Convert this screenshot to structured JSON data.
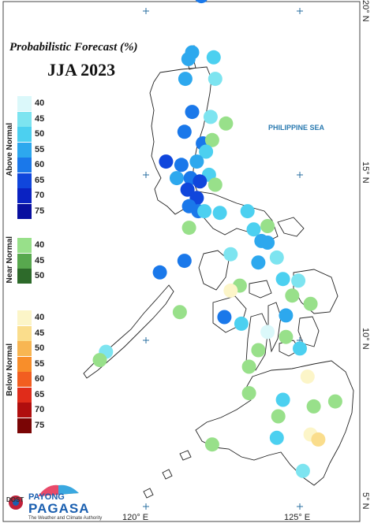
{
  "header": {
    "title": "Probabilistic Forecast (%)",
    "subtitle": "JJA 2023"
  },
  "map": {
    "sea_label": "PHILIPPINE SEA",
    "lon_labels": [
      "120° E",
      "125° E"
    ],
    "lat_labels": [
      "20° N",
      "15° N",
      "10° N",
      "5° N"
    ]
  },
  "legend": {
    "groups": [
      {
        "name": "Above Normal",
        "levels": [
          {
            "label": "40",
            "color": "#dbf8fa"
          },
          {
            "label": "45",
            "color": "#7de4f0"
          },
          {
            "label": "50",
            "color": "#4cd0f0"
          },
          {
            "label": "55",
            "color": "#2da8ee"
          },
          {
            "label": "60",
            "color": "#1a78ea"
          },
          {
            "label": "65",
            "color": "#1046dc"
          },
          {
            "label": "70",
            "color": "#0a22c2"
          },
          {
            "label": "75",
            "color": "#080fa0"
          }
        ]
      },
      {
        "name": "Near Normal",
        "levels": [
          {
            "label": "40",
            "color": "#98e08a"
          },
          {
            "label": "45",
            "color": "#58a84e"
          },
          {
            "label": "50",
            "color": "#2d6a2a"
          }
        ]
      },
      {
        "name": "Below Normal",
        "levels": [
          {
            "label": "40",
            "color": "#fcf5c8"
          },
          {
            "label": "45",
            "color": "#fadd8c"
          },
          {
            "label": "50",
            "color": "#f8b652"
          },
          {
            "label": "55",
            "color": "#f88e2a"
          },
          {
            "label": "60",
            "color": "#f25e20"
          },
          {
            "label": "65",
            "color": "#e02c1a"
          },
          {
            "label": "70",
            "color": "#b00e0e"
          },
          {
            "label": "75",
            "color": "#7a0505"
          }
        ]
      }
    ]
  },
  "stations": [
    {
      "lon": 121.8,
      "lat": 20.45,
      "cat": "AN",
      "p": 60
    },
    {
      "lon": 122.2,
      "lat": 18.6,
      "cat": "AN",
      "p": 50
    },
    {
      "lon": 121.5,
      "lat": 18.75,
      "cat": "AN",
      "p": 55
    },
    {
      "lon": 121.38,
      "lat": 18.55,
      "cat": "AN",
      "p": 55
    },
    {
      "lon": 121.28,
      "lat": 17.95,
      "cat": "AN",
      "p": 55
    },
    {
      "lon": 122.25,
      "lat": 17.95,
      "cat": "AN",
      "p": 45
    },
    {
      "lon": 121.5,
      "lat": 16.95,
      "cat": "AN",
      "p": 60
    },
    {
      "lon": 122.1,
      "lat": 16.8,
      "cat": "AN",
      "p": 45
    },
    {
      "lon": 122.6,
      "lat": 16.6,
      "cat": "NN",
      "p": 40
    },
    {
      "lon": 121.25,
      "lat": 16.35,
      "cat": "AN",
      "p": 60
    },
    {
      "lon": 121.85,
      "lat": 16.0,
      "cat": "AN",
      "p": 60
    },
    {
      "lon": 122.15,
      "lat": 16.1,
      "cat": "NN",
      "p": 40
    },
    {
      "lon": 121.95,
      "lat": 15.75,
      "cat": "AN",
      "p": 50
    },
    {
      "lon": 120.65,
      "lat": 15.45,
      "cat": "AN",
      "p": 65
    },
    {
      "lon": 121.15,
      "lat": 15.35,
      "cat": "AN",
      "p": 60
    },
    {
      "lon": 121.65,
      "lat": 15.45,
      "cat": "AN",
      "p": 55
    },
    {
      "lon": 122.05,
      "lat": 15.05,
      "cat": "AN",
      "p": 50
    },
    {
      "lon": 121.0,
      "lat": 14.95,
      "cat": "AN",
      "p": 55
    },
    {
      "lon": 121.45,
      "lat": 14.95,
      "cat": "AN",
      "p": 60
    },
    {
      "lon": 121.75,
      "lat": 14.85,
      "cat": "AN",
      "p": 65
    },
    {
      "lon": 122.25,
      "lat": 14.75,
      "cat": "NN",
      "p": 40
    },
    {
      "lon": 121.35,
      "lat": 14.6,
      "cat": "AN",
      "p": 65
    },
    {
      "lon": 121.65,
      "lat": 14.35,
      "cat": "AN",
      "p": 65
    },
    {
      "lon": 121.4,
      "lat": 14.1,
      "cat": "AN",
      "p": 60
    },
    {
      "lon": 121.7,
      "lat": 13.95,
      "cat": "AN",
      "p": 60
    },
    {
      "lon": 121.9,
      "lat": 13.95,
      "cat": "AN",
      "p": 50
    },
    {
      "lon": 122.4,
      "lat": 13.9,
      "cat": "AN",
      "p": 50
    },
    {
      "lon": 123.3,
      "lat": 13.95,
      "cat": "AN",
      "p": 50
    },
    {
      "lon": 121.4,
      "lat": 13.45,
      "cat": "NN",
      "p": 40
    },
    {
      "lon": 123.5,
      "lat": 13.4,
      "cat": "AN",
      "p": 50
    },
    {
      "lon": 123.95,
      "lat": 13.5,
      "cat": "NN",
      "p": 40
    },
    {
      "lon": 123.75,
      "lat": 13.05,
      "cat": "AN",
      "p": 55
    },
    {
      "lon": 123.95,
      "lat": 13.0,
      "cat": "AN",
      "p": 55
    },
    {
      "lon": 122.75,
      "lat": 12.65,
      "cat": "AN",
      "p": 45
    },
    {
      "lon": 124.25,
      "lat": 12.55,
      "cat": "AN",
      "p": 45
    },
    {
      "lon": 121.25,
      "lat": 12.45,
      "cat": "AN",
      "p": 60
    },
    {
      "lon": 123.65,
      "lat": 12.4,
      "cat": "AN",
      "p": 55
    },
    {
      "lon": 120.45,
      "lat": 12.1,
      "cat": "AN",
      "p": 60
    },
    {
      "lon": 124.45,
      "lat": 11.9,
      "cat": "AN",
      "p": 50
    },
    {
      "lon": 124.95,
      "lat": 11.85,
      "cat": "AN",
      "p": 45
    },
    {
      "lon": 123.05,
      "lat": 11.7,
      "cat": "NN",
      "p": 40
    },
    {
      "lon": 122.75,
      "lat": 11.55,
      "cat": "BN",
      "p": 40
    },
    {
      "lon": 124.75,
      "lat": 11.4,
      "cat": "NN",
      "p": 40
    },
    {
      "lon": 125.35,
      "lat": 11.15,
      "cat": "NN",
      "p": 40
    },
    {
      "lon": 121.1,
      "lat": 10.9,
      "cat": "NN",
      "p": 40
    },
    {
      "lon": 122.55,
      "lat": 10.75,
      "cat": "AN",
      "p": 60
    },
    {
      "lon": 124.55,
      "lat": 10.8,
      "cat": "AN",
      "p": 55
    },
    {
      "lon": 123.1,
      "lat": 10.55,
      "cat": "AN",
      "p": 50
    },
    {
      "lon": 123.95,
      "lat": 10.3,
      "cat": "AN",
      "p": 40
    },
    {
      "lon": 124.55,
      "lat": 10.15,
      "cat": "NN",
      "p": 40
    },
    {
      "lon": 123.65,
      "lat": 9.75,
      "cat": "NN",
      "p": 40
    },
    {
      "lon": 125.0,
      "lat": 9.8,
      "cat": "AN",
      "p": 50
    },
    {
      "lon": 118.7,
      "lat": 9.7,
      "cat": "AN",
      "p": 45
    },
    {
      "lon": 118.5,
      "lat": 9.45,
      "cat": "NN",
      "p": 40
    },
    {
      "lon": 123.35,
      "lat": 9.25,
      "cat": "NN",
      "p": 40
    },
    {
      "lon": 125.25,
      "lat": 8.95,
      "cat": "BN",
      "p": 40
    },
    {
      "lon": 123.35,
      "lat": 8.45,
      "cat": "NN",
      "p": 40
    },
    {
      "lon": 124.45,
      "lat": 8.25,
      "cat": "AN",
      "p": 50
    },
    {
      "lon": 125.45,
      "lat": 8.05,
      "cat": "NN",
      "p": 40
    },
    {
      "lon": 124.3,
      "lat": 7.75,
      "cat": "NN",
      "p": 40
    },
    {
      "lon": 126.15,
      "lat": 8.2,
      "cat": "NN",
      "p": 40
    },
    {
      "lon": 125.35,
      "lat": 7.2,
      "cat": "BN",
      "p": 40
    },
    {
      "lon": 125.6,
      "lat": 7.05,
      "cat": "BN",
      "p": 45
    },
    {
      "lon": 124.25,
      "lat": 7.1,
      "cat": "AN",
      "p": 50
    },
    {
      "lon": 122.15,
      "lat": 6.9,
      "cat": "NN",
      "p": 40
    },
    {
      "lon": 125.1,
      "lat": 6.1,
      "cat": "AN",
      "p": 45
    }
  ]
}
